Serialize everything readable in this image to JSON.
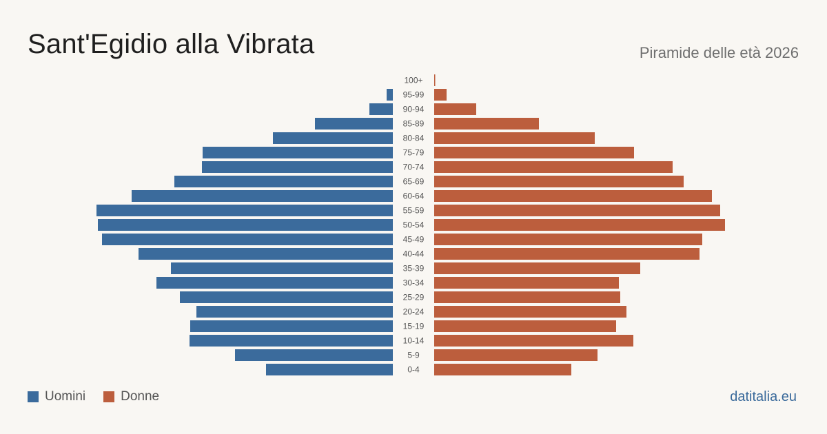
{
  "header": {
    "title": "Sant'Egidio alla Vibrata",
    "subtitle": "Piramide delle età 2026"
  },
  "legend": {
    "men_label": "Uomini",
    "women_label": "Donne"
  },
  "footer": {
    "source": "datitalia.eu"
  },
  "colors": {
    "men": "#3b6b9c",
    "women": "#bc5e3d",
    "background": "#f9f7f3"
  },
  "chart_data": {
    "type": "bar",
    "orientation": "horizontal-pyramid",
    "categories": [
      "100+",
      "95-99",
      "90-94",
      "85-89",
      "80-84",
      "75-79",
      "70-74",
      "65-69",
      "60-64",
      "55-59",
      "50-54",
      "45-49",
      "40-44",
      "35-39",
      "30-34",
      "25-29",
      "20-24",
      "15-19",
      "10-14",
      "5-9",
      "0-4"
    ],
    "series": [
      {
        "name": "Uomini",
        "values": [
          0,
          9,
          34,
          113,
          174,
          276,
          277,
          317,
          379,
          430,
          428,
          422,
          369,
          322,
          343,
          309,
          285,
          294,
          295,
          229,
          184
        ]
      },
      {
        "name": "Donne",
        "values": [
          1,
          18,
          61,
          152,
          233,
          290,
          346,
          362,
          403,
          415,
          422,
          389,
          385,
          299,
          268,
          270,
          279,
          264,
          289,
          237,
          199
        ]
      }
    ],
    "grid": false,
    "legend_position": "bottom-left"
  }
}
